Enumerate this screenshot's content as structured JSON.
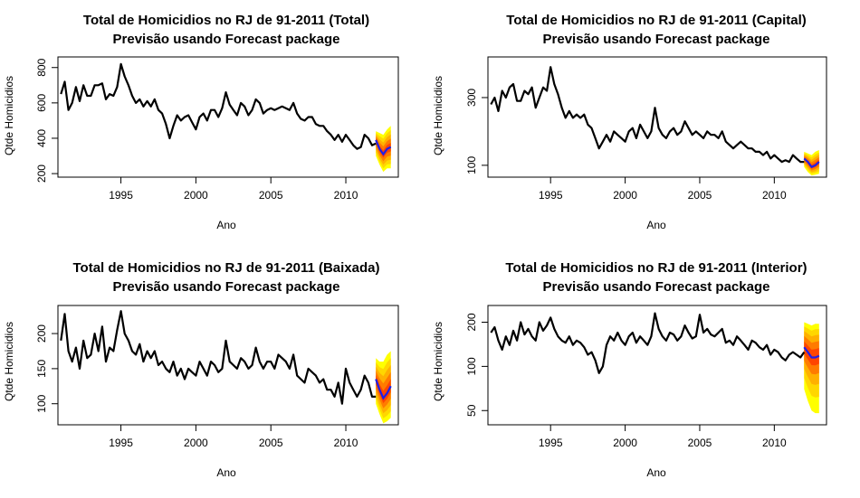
{
  "chart_data": [
    {
      "type": "line",
      "title": "Total de Homicidios no RJ de 91-2011 (Total)",
      "subtitle": "Previsão usando Forecast package",
      "xlabel": "Ano",
      "ylabel": "Qtde Homicidios",
      "xlim": [
        1990.8,
        2013.5
      ],
      "ylim": [
        180,
        860
      ],
      "log_scale": false,
      "x_ticks": [
        1995,
        2000,
        2005,
        2010
      ],
      "y_ticks": [
        200,
        400,
        600,
        800
      ],
      "colors": {
        "series": "#000000",
        "forecast": "#1f1fe8",
        "fan": [
          "#ffff00",
          "#ffd700",
          "#ffb000",
          "#ff7b00",
          "#ff4500"
        ]
      },
      "x": [
        1991.0,
        1991.25,
        1991.5,
        1991.75,
        1992.0,
        1992.25,
        1992.5,
        1992.75,
        1993.0,
        1993.25,
        1993.5,
        1993.75,
        1994.0,
        1994.25,
        1994.5,
        1994.75,
        1995.0,
        1995.25,
        1995.5,
        1995.75,
        1996.0,
        1996.25,
        1996.5,
        1996.75,
        1997.0,
        1997.25,
        1997.5,
        1997.75,
        1998.0,
        1998.25,
        1998.5,
        1998.75,
        1999.0,
        1999.25,
        1999.5,
        1999.75,
        2000.0,
        2000.25,
        2000.5,
        2000.75,
        2001.0,
        2001.25,
        2001.5,
        2001.75,
        2002.0,
        2002.25,
        2002.5,
        2002.75,
        2003.0,
        2003.25,
        2003.5,
        2003.75,
        2004.0,
        2004.25,
        2004.5,
        2004.75,
        2005.0,
        2005.25,
        2005.5,
        2005.75,
        2006.0,
        2006.25,
        2006.5,
        2006.75,
        2007.0,
        2007.25,
        2007.5,
        2007.75,
        2008.0,
        2008.25,
        2008.5,
        2008.75,
        2009.0,
        2009.25,
        2009.5,
        2009.75,
        2010.0,
        2010.25,
        2010.5,
        2010.75,
        2011.0,
        2011.25,
        2011.5,
        2011.75,
        2012.0
      ],
      "values": [
        650,
        720,
        560,
        600,
        690,
        610,
        700,
        640,
        640,
        700,
        700,
        710,
        620,
        650,
        640,
        690,
        820,
        750,
        700,
        640,
        600,
        620,
        580,
        610,
        580,
        620,
        560,
        540,
        480,
        400,
        470,
        530,
        500,
        520,
        530,
        490,
        450,
        520,
        540,
        500,
        560,
        560,
        520,
        570,
        660,
        590,
        560,
        530,
        600,
        580,
        530,
        560,
        620,
        600,
        540,
        560,
        570,
        560,
        570,
        580,
        570,
        560,
        600,
        540,
        510,
        500,
        520,
        520,
        480,
        470,
        470,
        440,
        420,
        390,
        420,
        380,
        420,
        390,
        360,
        340,
        350,
        420,
        400,
        360,
        370
      ],
      "forecast_x": [
        2012.0,
        2012.25,
        2012.5,
        2012.75,
        2013.0
      ],
      "forecast_values": [
        390,
        340,
        310,
        340,
        350
      ],
      "forecast_upper95": [
        440,
        430,
        420,
        450,
        470
      ],
      "forecast_lower95": [
        300,
        250,
        210,
        230,
        230
      ]
    },
    {
      "type": "line",
      "title": "Total de Homicidios no RJ de 91-2011 (Capital)",
      "subtitle": "Previsão usando Forecast package",
      "xlabel": "Ano",
      "ylabel": "Qtde Homicidios",
      "xlim": [
        1990.8,
        2013.5
      ],
      "ylim": [
        65,
        420
      ],
      "log_scale": false,
      "x_ticks": [
        1995,
        2000,
        2005,
        2010
      ],
      "y_ticks": [
        100,
        300
      ],
      "colors": {
        "series": "#000000",
        "forecast": "#1f1fe8",
        "fan": [
          "#ffff00",
          "#ffd700",
          "#ffb000",
          "#ff7b00",
          "#ff4500"
        ]
      },
      "x": [
        1991.0,
        1991.25,
        1991.5,
        1991.75,
        1992.0,
        1992.25,
        1992.5,
        1992.75,
        1993.0,
        1993.25,
        1993.5,
        1993.75,
        1994.0,
        1994.25,
        1994.5,
        1994.75,
        1995.0,
        1995.25,
        1995.5,
        1995.75,
        1996.0,
        1996.25,
        1996.5,
        1996.75,
        1997.0,
        1997.25,
        1997.5,
        1997.75,
        1998.0,
        1998.25,
        1998.5,
        1998.75,
        1999.0,
        1999.25,
        1999.5,
        1999.75,
        2000.0,
        2000.25,
        2000.5,
        2000.75,
        2001.0,
        2001.25,
        2001.5,
        2001.75,
        2002.0,
        2002.25,
        2002.5,
        2002.75,
        2003.0,
        2003.25,
        2003.5,
        2003.75,
        2004.0,
        2004.25,
        2004.5,
        2004.75,
        2005.0,
        2005.25,
        2005.5,
        2005.75,
        2006.0,
        2006.25,
        2006.5,
        2006.75,
        2007.0,
        2007.25,
        2007.5,
        2007.75,
        2008.0,
        2008.25,
        2008.5,
        2008.75,
        2009.0,
        2009.25,
        2009.5,
        2009.75,
        2010.0,
        2010.25,
        2010.5,
        2010.75,
        2011.0,
        2011.25,
        2011.5,
        2011.75,
        2012.0
      ],
      "values": [
        280,
        300,
        260,
        320,
        300,
        330,
        340,
        290,
        290,
        320,
        310,
        330,
        270,
        300,
        330,
        320,
        390,
        340,
        310,
        270,
        240,
        260,
        240,
        250,
        240,
        250,
        220,
        210,
        180,
        150,
        170,
        190,
        170,
        200,
        190,
        180,
        170,
        200,
        210,
        180,
        220,
        200,
        180,
        200,
        270,
        210,
        190,
        180,
        200,
        210,
        190,
        200,
        230,
        210,
        190,
        200,
        190,
        180,
        200,
        190,
        190,
        180,
        200,
        170,
        160,
        150,
        160,
        170,
        160,
        150,
        150,
        140,
        140,
        130,
        140,
        120,
        130,
        120,
        110,
        115,
        110,
        130,
        120,
        110,
        110
      ],
      "forecast_x": [
        2012.0,
        2012.25,
        2012.5,
        2012.75,
        2013.0
      ],
      "forecast_values": [
        120,
        110,
        95,
        100,
        110
      ],
      "forecast_upper95": [
        140,
        135,
        130,
        140,
        145
      ],
      "forecast_lower95": [
        95,
        80,
        70,
        72,
        75
      ]
    },
    {
      "type": "line",
      "title": "Total de Homicidios no RJ de 91-2011 (Baixada)",
      "subtitle": "Previsão usando Forecast package",
      "xlabel": "Ano",
      "ylabel": "Qtde Homicidios",
      "xlim": [
        1990.8,
        2013.5
      ],
      "ylim": [
        70,
        240
      ],
      "log_scale": false,
      "x_ticks": [
        1995,
        2000,
        2005,
        2010
      ],
      "y_ticks": [
        100,
        150,
        200
      ],
      "colors": {
        "series": "#000000",
        "forecast": "#1f1fe8",
        "fan": [
          "#ffff00",
          "#ffd700",
          "#ffb000",
          "#ff7b00",
          "#ff4500"
        ]
      },
      "x": [
        1991.0,
        1991.25,
        1991.5,
        1991.75,
        1992.0,
        1992.25,
        1992.5,
        1992.75,
        1993.0,
        1993.25,
        1993.5,
        1993.75,
        1994.0,
        1994.25,
        1994.5,
        1994.75,
        1995.0,
        1995.25,
        1995.5,
        1995.75,
        1996.0,
        1996.25,
        1996.5,
        1996.75,
        1997.0,
        1997.25,
        1997.5,
        1997.75,
        1998.0,
        1998.25,
        1998.5,
        1998.75,
        1999.0,
        1999.25,
        1999.5,
        1999.75,
        2000.0,
        2000.25,
        2000.5,
        2000.75,
        2001.0,
        2001.25,
        2001.5,
        2001.75,
        2002.0,
        2002.25,
        2002.5,
        2002.75,
        2003.0,
        2003.25,
        2003.5,
        2003.75,
        2004.0,
        2004.25,
        2004.5,
        2004.75,
        2005.0,
        2005.25,
        2005.5,
        2005.75,
        2006.0,
        2006.25,
        2006.5,
        2006.75,
        2007.0,
        2007.25,
        2007.5,
        2007.75,
        2008.0,
        2008.25,
        2008.5,
        2008.75,
        2009.0,
        2009.25,
        2009.5,
        2009.75,
        2010.0,
        2010.25,
        2010.5,
        2010.75,
        2011.0,
        2011.25,
        2011.5,
        2011.75,
        2012.0
      ],
      "values": [
        190,
        228,
        175,
        160,
        180,
        150,
        190,
        165,
        170,
        200,
        175,
        210,
        160,
        180,
        175,
        205,
        232,
        200,
        190,
        175,
        170,
        185,
        160,
        175,
        165,
        175,
        155,
        160,
        150,
        145,
        160,
        140,
        150,
        135,
        150,
        145,
        140,
        160,
        150,
        140,
        160,
        155,
        145,
        150,
        190,
        160,
        155,
        150,
        165,
        160,
        150,
        155,
        180,
        160,
        150,
        160,
        160,
        150,
        170,
        165,
        160,
        150,
        170,
        140,
        135,
        130,
        150,
        145,
        140,
        130,
        135,
        120,
        120,
        110,
        130,
        100,
        150,
        130,
        120,
        110,
        120,
        140,
        130,
        110,
        110
      ],
      "forecast_x": [
        2012.0,
        2012.25,
        2012.5,
        2012.75,
        2013.0
      ],
      "forecast_values": [
        135,
        120,
        108,
        115,
        125
      ],
      "forecast_upper95": [
        165,
        160,
        160,
        170,
        175
      ],
      "forecast_lower95": [
        100,
        85,
        72,
        75,
        80
      ]
    },
    {
      "type": "line",
      "title": "Total de Homicidios no RJ de 91-2011 (Interior)",
      "subtitle": "Previsão usando Forecast package",
      "xlabel": "Ano",
      "ylabel": "Qtde Homicidios",
      "xlim": [
        1990.8,
        2013.5
      ],
      "ylim": [
        40,
        260
      ],
      "log_scale": true,
      "x_ticks": [
        1995,
        2000,
        2005,
        2010
      ],
      "y_ticks": [
        50,
        100,
        200
      ],
      "colors": {
        "series": "#000000",
        "forecast": "#1f1fe8",
        "fan": [
          "#ffff00",
          "#ffd700",
          "#ffb000",
          "#ff7b00",
          "#ff4500"
        ]
      },
      "x": [
        1991.0,
        1991.25,
        1991.5,
        1991.75,
        1992.0,
        1992.25,
        1992.5,
        1992.75,
        1993.0,
        1993.25,
        1993.5,
        1993.75,
        1994.0,
        1994.25,
        1994.5,
        1994.75,
        1995.0,
        1995.25,
        1995.5,
        1995.75,
        1996.0,
        1996.25,
        1996.5,
        1996.75,
        1997.0,
        1997.25,
        1997.5,
        1997.75,
        1998.0,
        1998.25,
        1998.5,
        1998.75,
        1999.0,
        1999.25,
        1999.5,
        1999.75,
        2000.0,
        2000.25,
        2000.5,
        2000.75,
        2001.0,
        2001.25,
        2001.5,
        2001.75,
        2002.0,
        2002.25,
        2002.5,
        2002.75,
        2003.0,
        2003.25,
        2003.5,
        2003.75,
        2004.0,
        2004.25,
        2004.5,
        2004.75,
        2005.0,
        2005.25,
        2005.5,
        2005.75,
        2006.0,
        2006.25,
        2006.5,
        2006.75,
        2007.0,
        2007.25,
        2007.5,
        2007.75,
        2008.0,
        2008.25,
        2008.5,
        2008.75,
        2009.0,
        2009.25,
        2009.5,
        2009.75,
        2010.0,
        2010.25,
        2010.5,
        2010.75,
        2011.0,
        2011.25,
        2011.5,
        2011.75,
        2012.0
      ],
      "values": [
        170,
        185,
        150,
        130,
        160,
        140,
        175,
        150,
        200,
        165,
        180,
        160,
        150,
        200,
        175,
        190,
        215,
        180,
        160,
        150,
        145,
        160,
        140,
        150,
        145,
        135,
        120,
        125,
        110,
        90,
        100,
        140,
        160,
        150,
        170,
        150,
        140,
        160,
        170,
        145,
        160,
        150,
        140,
        160,
        230,
        180,
        160,
        150,
        170,
        165,
        150,
        160,
        190,
        170,
        155,
        160,
        225,
        170,
        180,
        165,
        160,
        170,
        180,
        145,
        150,
        140,
        160,
        150,
        140,
        130,
        150,
        145,
        135,
        130,
        140,
        120,
        130,
        125,
        115,
        110,
        120,
        125,
        120,
        115,
        125
      ],
      "forecast_x": [
        2012.0,
        2012.25,
        2012.5,
        2012.75,
        2013.0
      ],
      "forecast_values": [
        135,
        125,
        115,
        115,
        118
      ],
      "forecast_upper95": [
        200,
        195,
        190,
        195,
        195
      ],
      "forecast_lower95": [
        70,
        58,
        50,
        48,
        48
      ]
    }
  ]
}
